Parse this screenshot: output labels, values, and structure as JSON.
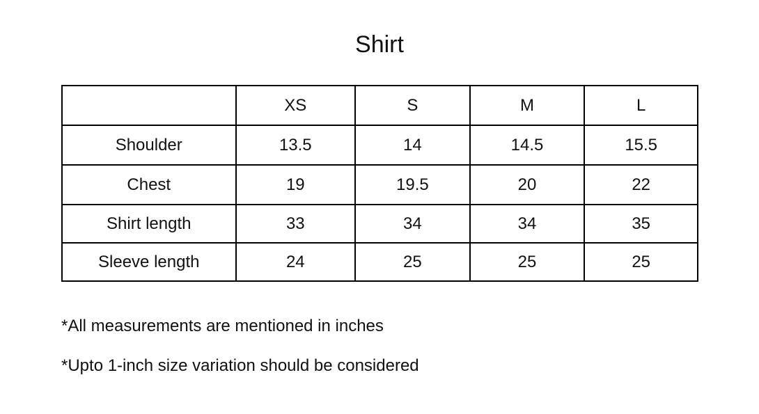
{
  "title": "Shirt",
  "table": {
    "headers": [
      "",
      "XS",
      "S",
      "M",
      "L"
    ],
    "rows": [
      {
        "label": "Shoulder",
        "values": [
          "13.5",
          "14",
          "14.5",
          "15.5"
        ]
      },
      {
        "label": "Chest",
        "values": [
          "19",
          "19.5",
          "20",
          "22"
        ]
      },
      {
        "label": "Shirt length",
        "values": [
          "33",
          "34",
          "34",
          "35"
        ]
      },
      {
        "label": "Sleeve length",
        "values": [
          "24",
          "25",
          "25",
          "25"
        ]
      }
    ]
  },
  "notes": [
    "*All measurements are mentioned in inches",
    "*Upto 1-inch size variation should be considered"
  ]
}
